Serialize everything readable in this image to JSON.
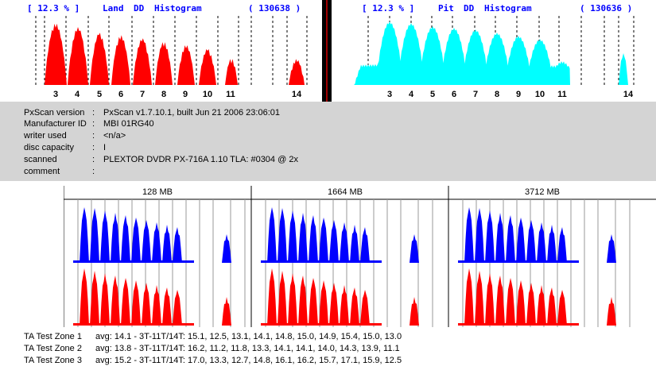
{
  "land_histogram": {
    "percent_label": "[ 12.3 % ]",
    "kind_label": "Land",
    "dd_label": "DD",
    "histogram_label": "Histogram",
    "count_label": "( 130638 )",
    "color": "#ff0000",
    "tick_labels": [
      "3",
      "4",
      "5",
      "6",
      "7",
      "8",
      "9",
      "10",
      "11",
      "14"
    ]
  },
  "pit_histogram": {
    "percent_label": "[ 12.3 % ]",
    "kind_label": "Pit",
    "dd_label": "DD",
    "histogram_label": "Histogram",
    "count_label": "( 130636 )",
    "color": "#00ffff",
    "tick_labels": [
      "3",
      "4",
      "5",
      "6",
      "7",
      "8",
      "9",
      "10",
      "11",
      "14"
    ]
  },
  "scan_info": {
    "rows": [
      {
        "key": "PxScan version",
        "sep": ":",
        "value": "PxScan v1.7.10.1, built Jun 21 2006 23:06:01"
      },
      {
        "key": "Manufacturer ID",
        "sep": ":",
        "value": "MBI 01RG40"
      },
      {
        "key": "writer used",
        "sep": ":",
        "value": "<n/a>"
      },
      {
        "key": "disc capacity",
        "sep": ":",
        "value": "I"
      },
      {
        "key": "scanned",
        "sep": ":",
        "value": "PLEXTOR DVDR PX-716A 1.10 TLA: #0304 @ 2x"
      },
      {
        "key": "comment",
        "sep": ":",
        "value": ""
      }
    ]
  },
  "ta_zones": {
    "labels": [
      "128 MB",
      "1664 MB",
      "3712 MB"
    ],
    "upper_color": "#0000ff",
    "lower_color": "#ff0000"
  },
  "ta_results": [
    {
      "name": "TA Test Zone 1",
      "text": "avg: 14.1 - 3T-11T/14T: 15.1, 12.5, 13.1, 14.1, 14.8, 15.0, 14.9, 15.4, 15.0, 13.0"
    },
    {
      "name": "TA Test Zone 2",
      "text": "avg: 13.8 - 3T-11T/14T: 16.2, 11.2, 11.8, 13.3, 14.1, 14.1, 14.0, 14.3, 13.9, 11.1"
    },
    {
      "name": "TA Test Zone 3",
      "text": "avg: 15.2 - 3T-11T/14T: 17.0, 13.3, 12.7, 14.8, 16.1, 16.2, 15.7, 17.1, 15.9, 12.5"
    }
  ]
}
